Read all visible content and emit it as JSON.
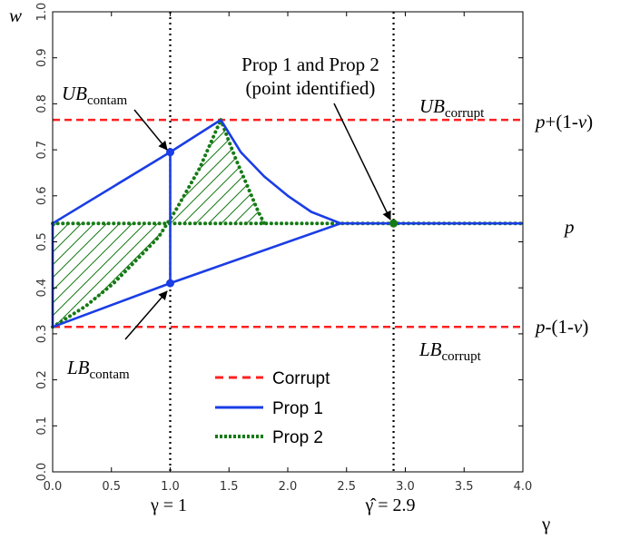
{
  "chart_data": {
    "type": "line",
    "title": "",
    "xlabel": "γ",
    "ylabel": "w",
    "xlim": [
      0,
      4
    ],
    "ylim": [
      0,
      1
    ],
    "x_ticks": [
      "0.0",
      "0.5",
      "1.0",
      "1.5",
      "2.0",
      "2.5",
      "3.0",
      "3.5",
      "4.0"
    ],
    "y_ticks": [
      "0.0",
      "0.1",
      "0.2",
      "0.3",
      "0.4",
      "0.5",
      "0.6",
      "0.7",
      "0.8",
      "0.9",
      "1.0"
    ],
    "x_tick_values": [
      0,
      0.5,
      1.0,
      1.5,
      2.0,
      2.5,
      3.0,
      3.5,
      4.0
    ],
    "y_tick_values": [
      0,
      0.1,
      0.2,
      0.3,
      0.4,
      0.5,
      0.6,
      0.7,
      0.8,
      0.9,
      1.0
    ],
    "grid": false,
    "legend_position": "bottom-center",
    "colors": {
      "corrupt": "#ff2020",
      "prop1": "#1a3de6",
      "prop2": "#157a15",
      "vline": "#000000"
    },
    "series": [
      {
        "name": "Corrupt",
        "style": "dashed",
        "lines": [
          {
            "x": [
              0,
              4
            ],
            "y": [
              0.765,
              0.765
            ]
          },
          {
            "x": [
              0,
              4
            ],
            "y": [
              0.315,
              0.315
            ]
          }
        ]
      },
      {
        "name": "Prop 1",
        "style": "solid",
        "lines": [
          {
            "x": [
              0,
              1.0,
              1.43
            ],
            "y": [
              0.54,
              0.695,
              0.765
            ]
          },
          {
            "x": [
              1.43,
              1.6,
              1.8,
              2.0,
              2.2,
              2.45
            ],
            "y": [
              0.765,
              0.695,
              0.642,
              0.6,
              0.565,
              0.54
            ]
          },
          {
            "x": [
              0,
              1.0,
              2.45,
              4.0
            ],
            "y": [
              0.315,
              0.41,
              0.54,
              0.54
            ]
          },
          {
            "x": [
              0,
              0
            ],
            "y": [
              0.315,
              0.54
            ]
          },
          {
            "x": [
              1.0,
              1.0
            ],
            "y": [
              0.41,
              0.695
            ]
          }
        ]
      },
      {
        "name": "Prop 2",
        "style": "dotted",
        "lines": [
          {
            "x": [
              0,
              4
            ],
            "y": [
              0.54,
              0.54
            ]
          },
          {
            "x": [
              0,
              0.28,
              0.52,
              0.75,
              0.9,
              1.05,
              1.25,
              1.43
            ],
            "y": [
              0.315,
              0.36,
              0.41,
              0.47,
              0.51,
              0.57,
              0.66,
              0.765
            ]
          },
          {
            "x": [
              1.43,
              1.55,
              1.65,
              1.75,
              1.8
            ],
            "y": [
              0.765,
              0.685,
              0.625,
              0.565,
              0.54
            ]
          }
        ]
      }
    ],
    "points": [
      {
        "x": 1.0,
        "y": 0.695,
        "color": "prop1"
      },
      {
        "x": 1.0,
        "y": 0.41,
        "color": "prop1"
      },
      {
        "x": 2.9,
        "y": 0.54,
        "color": "prop2"
      }
    ],
    "vlines": [
      1.0,
      2.9
    ]
  },
  "annotations": {
    "ub_corrupt": {
      "main": "UB",
      "sub": "corrupt"
    },
    "lb_corrupt": {
      "main": "LB",
      "sub": "corrupt"
    },
    "ub_contam": {
      "main": "UB",
      "sub": "contam"
    },
    "lb_contam": {
      "main": "LB",
      "sub": "contam"
    },
    "prop_both_line1": "Prop 1 and Prop 2",
    "prop_both_line2": "(point identified)",
    "p_label": "p",
    "p_plus_a": "p",
    "p_plus_b": "+(1-",
    "p_plus_c": "v",
    "p_plus_d": ")",
    "p_minus_a": "p",
    "p_minus_b": "-(1-",
    "p_minus_c": "v",
    "p_minus_d": ")",
    "gamma_eq_1": "γ = 1",
    "gamma_hat_a": "γ̂",
    "gamma_hat_b": " = 2.9"
  },
  "legend": {
    "corrupt": "Corrupt",
    "prop1": "Prop 1",
    "prop2": "Prop 2"
  }
}
